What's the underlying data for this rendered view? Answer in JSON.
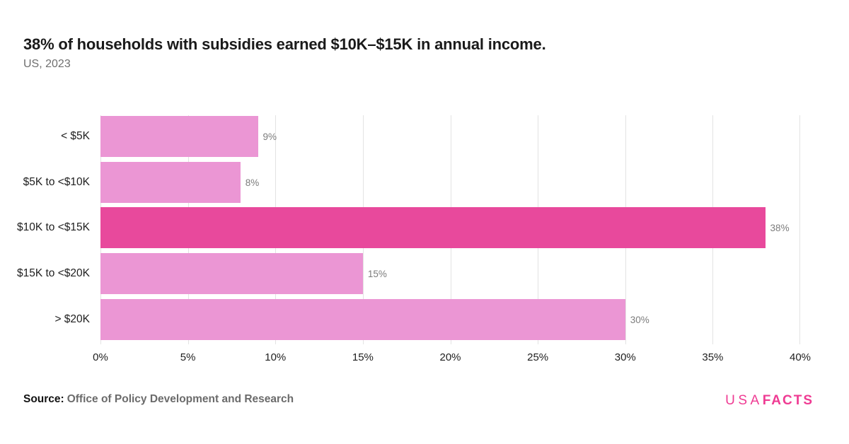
{
  "header": {
    "title": "38% of households with subsidies earned $10K–$15K in annual income.",
    "subtitle": "US, 2023"
  },
  "chart_data": {
    "type": "bar",
    "orientation": "horizontal",
    "title": "38% of households with subsidies earned $10K–$15K in annual income.",
    "subtitle": "US, 2023",
    "categories": [
      "< $5K",
      "$5K to <$10K",
      "$10K to <$15K",
      "$15K to <$20K",
      "> $20K"
    ],
    "values": [
      9,
      8,
      38,
      15,
      30
    ],
    "value_labels": [
      "9%",
      "8%",
      "38%",
      "15%",
      "30%"
    ],
    "highlight_index": 2,
    "bar_color": "#EB96D4",
    "highlight_color": "#E8499C",
    "gridline_color": "#E3E3E3",
    "xlim": [
      0,
      40
    ],
    "x_tick_labels": [
      "0%",
      "5%",
      "10%",
      "15%",
      "20%",
      "25%",
      "30%",
      "35%",
      "40%"
    ],
    "xlabel": "",
    "ylabel": "",
    "grid": true,
    "legend": false
  },
  "footer": {
    "source_label": "Source:",
    "source_text": "Office of Policy Development and Research",
    "logo": {
      "part1": "USA",
      "part2": "FACTS",
      "color": "#EF3B93"
    }
  }
}
